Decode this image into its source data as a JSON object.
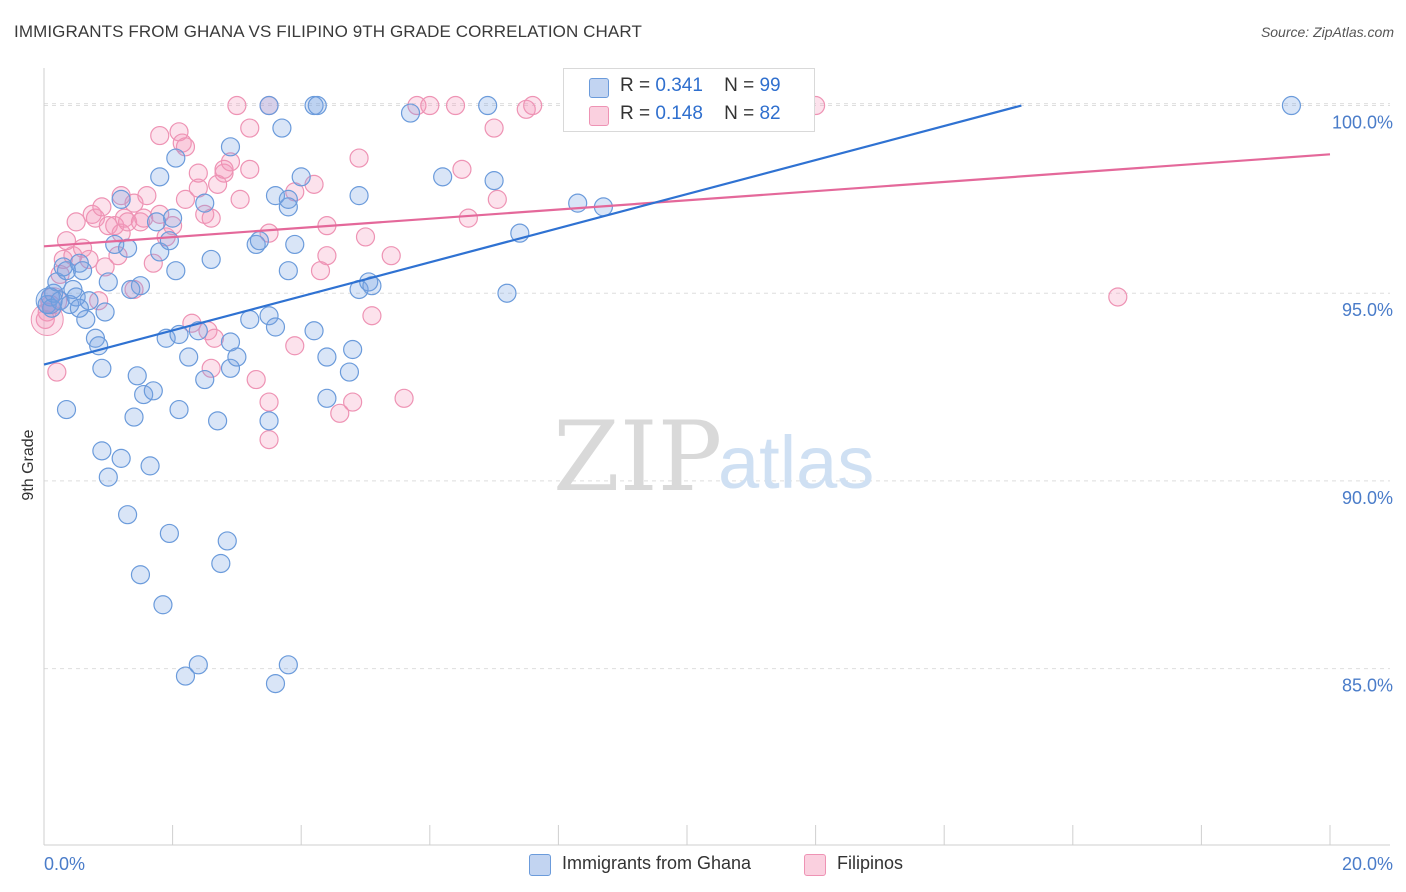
{
  "title": "IMMIGRANTS FROM GHANA VS FILIPINO 9TH GRADE CORRELATION CHART",
  "source": "Source: ZipAtlas.com",
  "watermark": {
    "zip": "ZIP",
    "atlas": "atlas"
  },
  "legend": {
    "ghana": {
      "r_label": "R =",
      "r_value": "0.341",
      "n_label": "N =",
      "n_value": "99"
    },
    "filipino": {
      "r_label": "R =",
      "r_value": "0.148",
      "n_label": "N =",
      "n_value": "82"
    }
  },
  "bottom_legend": {
    "ghana": "Immigrants from Ghana",
    "filipino": "Filipinos"
  },
  "colors": {
    "ghana_fill": "rgba(120,160,225,0.28)",
    "ghana_stroke": "#6b9bdb",
    "ghana_line": "#2f72d2",
    "filipino_fill": "rgba(245,150,185,0.28)",
    "filipino_stroke": "#ee93b4",
    "filipino_line": "#e4689a",
    "grid": "#dedede",
    "axis_text": "#4a7cc9"
  },
  "chart_data": {
    "type": "scatter",
    "title": "IMMIGRANTS FROM GHANA VS FILIPINO 9TH GRADE CORRELATION CHART",
    "xlabel": "",
    "ylabel": "9th Grade",
    "xlim": [
      0,
      20
    ],
    "ylim": [
      80.3,
      101.0
    ],
    "x_tick_labels": [
      "0.0%",
      "20.0%"
    ],
    "y_ticks": [
      85,
      90,
      95,
      100
    ],
    "y_tick_labels": [
      "85.0%",
      "90.0%",
      "95.0%",
      "100.0%"
    ],
    "grid": true,
    "series": [
      {
        "name": "Immigrants from Ghana",
        "trend": {
          "x": [
            0.0,
            15.2
          ],
          "y": [
            93.1,
            100.0
          ]
        },
        "points": [
          [
            0.05,
            94.7
          ],
          [
            0.1,
            94.9
          ],
          [
            0.12,
            94.6
          ],
          [
            0.15,
            95.0
          ],
          [
            0.2,
            95.3
          ],
          [
            0.25,
            94.8
          ],
          [
            0.3,
            95.7
          ],
          [
            0.35,
            95.6
          ],
          [
            0.4,
            94.7
          ],
          [
            0.45,
            95.1
          ],
          [
            0.5,
            94.9
          ],
          [
            0.55,
            95.8
          ],
          [
            0.6,
            95.6
          ],
          [
            0.65,
            94.3
          ],
          [
            0.7,
            94.8
          ],
          [
            0.8,
            93.8
          ],
          [
            0.85,
            93.6
          ],
          [
            0.9,
            93.0
          ],
          [
            0.95,
            94.5
          ],
          [
            1.0,
            95.3
          ],
          [
            0.35,
            91.9
          ],
          [
            0.9,
            90.8
          ],
          [
            1.0,
            90.1
          ],
          [
            1.2,
            90.6
          ],
          [
            1.3,
            89.1
          ],
          [
            1.5,
            87.5
          ],
          [
            1.65,
            90.4
          ],
          [
            1.85,
            86.7
          ],
          [
            1.95,
            88.6
          ],
          [
            2.2,
            84.8
          ],
          [
            2.4,
            85.1
          ],
          [
            2.75,
            87.8
          ],
          [
            2.85,
            88.4
          ],
          [
            3.6,
            84.6
          ],
          [
            3.8,
            85.1
          ],
          [
            1.4,
            91.7
          ],
          [
            1.55,
            92.3
          ],
          [
            1.45,
            92.8
          ],
          [
            1.7,
            92.4
          ],
          [
            2.1,
            91.9
          ],
          [
            2.25,
            93.3
          ],
          [
            2.5,
            92.7
          ],
          [
            2.7,
            91.6
          ],
          [
            2.9,
            93.0
          ],
          [
            3.0,
            93.3
          ],
          [
            3.5,
            91.6
          ],
          [
            4.4,
            92.2
          ],
          [
            4.75,
            92.9
          ],
          [
            1.9,
            93.8
          ],
          [
            2.1,
            93.9
          ],
          [
            2.4,
            94.0
          ],
          [
            3.2,
            94.3
          ],
          [
            3.5,
            94.4
          ],
          [
            3.6,
            94.1
          ],
          [
            2.9,
            93.7
          ],
          [
            4.4,
            93.3
          ],
          [
            4.8,
            93.5
          ],
          [
            4.9,
            95.1
          ],
          [
            5.05,
            95.3
          ],
          [
            5.1,
            95.2
          ],
          [
            7.2,
            95.0
          ],
          [
            1.1,
            96.3
          ],
          [
            1.3,
            96.2
          ],
          [
            1.8,
            96.1
          ],
          [
            1.5,
            95.2
          ],
          [
            2.05,
            95.6
          ],
          [
            2.6,
            95.9
          ],
          [
            1.95,
            96.4
          ],
          [
            3.3,
            96.3
          ],
          [
            3.35,
            96.4
          ],
          [
            3.9,
            96.3
          ],
          [
            3.8,
            95.6
          ],
          [
            4.2,
            94.0
          ],
          [
            1.75,
            96.9
          ],
          [
            2.0,
            97.0
          ],
          [
            1.2,
            97.5
          ],
          [
            2.5,
            97.4
          ],
          [
            3.8,
            97.3
          ],
          [
            3.6,
            97.6
          ],
          [
            3.8,
            97.5
          ],
          [
            4.0,
            98.1
          ],
          [
            4.9,
            97.6
          ],
          [
            6.2,
            98.1
          ],
          [
            7.0,
            98.0
          ],
          [
            7.4,
            96.6
          ],
          [
            8.3,
            97.4
          ],
          [
            8.7,
            97.3
          ],
          [
            1.8,
            98.1
          ],
          [
            2.05,
            98.6
          ],
          [
            2.9,
            98.9
          ],
          [
            3.7,
            99.4
          ],
          [
            3.5,
            100.0
          ],
          [
            4.2,
            100.0
          ],
          [
            4.25,
            100.0
          ],
          [
            5.7,
            99.8
          ],
          [
            6.9,
            100.0
          ],
          [
            19.4,
            100.0
          ],
          [
            0.55,
            94.6
          ],
          [
            1.35,
            95.1
          ]
        ]
      },
      {
        "name": "Filipinos",
        "trend": {
          "x": [
            0.0,
            20.0
          ],
          "y": [
            96.25,
            98.7
          ]
        },
        "points": [
          [
            0.02,
            94.3
          ],
          [
            0.05,
            94.5
          ],
          [
            0.1,
            94.7
          ],
          [
            0.2,
            92.9
          ],
          [
            0.25,
            95.5
          ],
          [
            0.3,
            95.9
          ],
          [
            0.35,
            96.4
          ],
          [
            0.45,
            96.0
          ],
          [
            0.5,
            96.9
          ],
          [
            0.6,
            96.2
          ],
          [
            0.7,
            95.9
          ],
          [
            0.75,
            97.1
          ],
          [
            0.8,
            97.0
          ],
          [
            0.9,
            97.3
          ],
          [
            0.95,
            95.7
          ],
          [
            1.0,
            96.8
          ],
          [
            1.1,
            96.8
          ],
          [
            1.15,
            96.0
          ],
          [
            1.2,
            96.6
          ],
          [
            1.25,
            97.0
          ],
          [
            1.3,
            96.9
          ],
          [
            1.4,
            97.4
          ],
          [
            1.5,
            96.9
          ],
          [
            1.55,
            97.0
          ],
          [
            1.6,
            97.6
          ],
          [
            1.7,
            95.8
          ],
          [
            1.8,
            97.1
          ],
          [
            1.9,
            96.5
          ],
          [
            1.2,
            97.6
          ],
          [
            1.4,
            95.1
          ],
          [
            0.85,
            94.8
          ],
          [
            2.0,
            96.8
          ],
          [
            2.2,
            97.5
          ],
          [
            2.4,
            97.8
          ],
          [
            2.5,
            97.1
          ],
          [
            2.6,
            97.0
          ],
          [
            2.8,
            98.2
          ],
          [
            2.9,
            98.5
          ],
          [
            3.05,
            97.5
          ],
          [
            3.2,
            98.3
          ],
          [
            1.8,
            99.2
          ],
          [
            2.1,
            99.3
          ],
          [
            2.15,
            99.0
          ],
          [
            2.2,
            98.9
          ],
          [
            2.4,
            98.2
          ],
          [
            2.7,
            97.9
          ],
          [
            2.8,
            98.3
          ],
          [
            3.2,
            99.4
          ],
          [
            3.5,
            100.0
          ],
          [
            3.0,
            100.0
          ],
          [
            3.5,
            96.6
          ],
          [
            3.9,
            97.7
          ],
          [
            4.2,
            97.9
          ],
          [
            4.4,
            96.0
          ],
          [
            4.3,
            95.6
          ],
          [
            4.4,
            96.8
          ],
          [
            4.9,
            98.6
          ],
          [
            5.0,
            96.5
          ],
          [
            5.4,
            96.0
          ],
          [
            5.8,
            100.0
          ],
          [
            6.0,
            100.0
          ],
          [
            6.4,
            100.0
          ],
          [
            6.5,
            98.3
          ],
          [
            6.6,
            97.0
          ],
          [
            7.0,
            99.4
          ],
          [
            7.05,
            97.5
          ],
          [
            7.5,
            99.9
          ],
          [
            7.6,
            100.0
          ],
          [
            12.0,
            100.0
          ],
          [
            16.7,
            94.9
          ],
          [
            2.3,
            94.2
          ],
          [
            2.55,
            94.0
          ],
          [
            2.65,
            93.8
          ],
          [
            2.6,
            93.0
          ],
          [
            3.3,
            92.7
          ],
          [
            3.5,
            92.1
          ],
          [
            3.5,
            91.1
          ],
          [
            3.9,
            93.6
          ],
          [
            4.6,
            91.8
          ],
          [
            4.8,
            92.1
          ],
          [
            5.6,
            92.2
          ],
          [
            5.1,
            94.4
          ]
        ]
      }
    ]
  }
}
